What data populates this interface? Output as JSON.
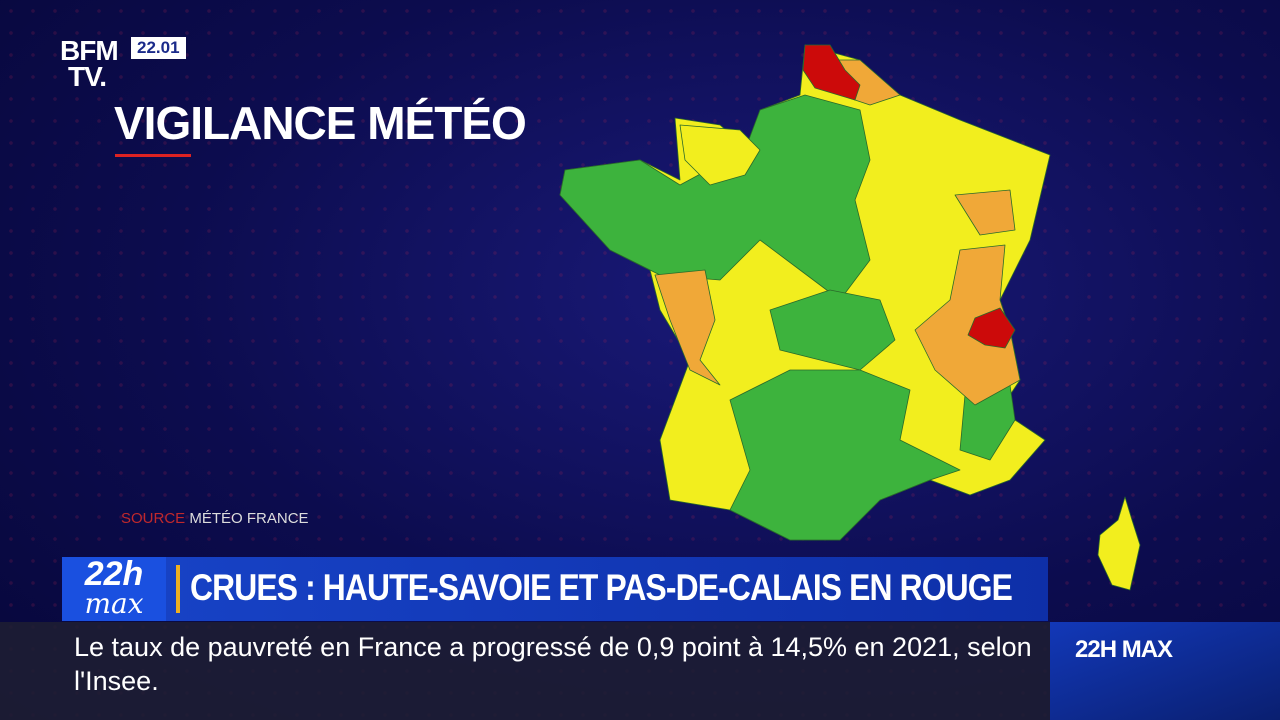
{
  "header": {
    "logo_line1": "BFM",
    "logo_line2": "TV.",
    "time": "22.01"
  },
  "title": "VIGILANCE MÉTÉO",
  "source": {
    "label": "SOURCE",
    "name": "MÉTÉO FRANCE"
  },
  "banner": {
    "show_line1": "22h",
    "show_line2": "max",
    "headline": "CRUES : HAUTE-SAVOIE ET PAS-DE-CALAIS EN ROUGE"
  },
  "ticker": {
    "text": "Le taux de pauvreté en France a progressé de 0,9 point à 14,5% en 2021, selon l'Insee.",
    "program": "22H MAX"
  }
}
